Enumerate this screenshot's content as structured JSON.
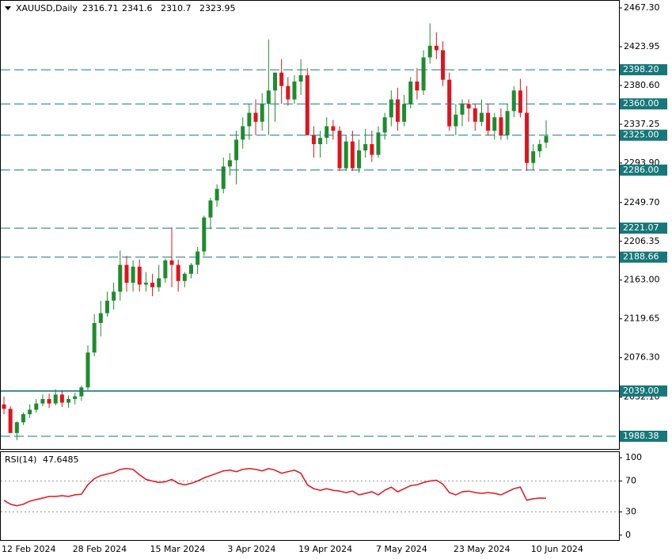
{
  "chart_data": [
    {
      "type": "candlestick",
      "symbol": "XAUUSD,Daily",
      "up_color": "#1e8c2d",
      "down_color": "#e0141e",
      "level_color": "#17777a",
      "categories": [
        "12 Feb 2024",
        null,
        null,
        null,
        null,
        null,
        null,
        null,
        null,
        null,
        null,
        "28 Feb 2024",
        null,
        null,
        null,
        null,
        null,
        null,
        null,
        null,
        null,
        null,
        null,
        "15 Mar 2024",
        null,
        null,
        null,
        null,
        null,
        null,
        null,
        null,
        null,
        null,
        null,
        "3 Apr 2024",
        null,
        null,
        null,
        null,
        null,
        null,
        null,
        null,
        null,
        null,
        "19 Apr 2024",
        null,
        null,
        null,
        null,
        null,
        null,
        null,
        null,
        null,
        null,
        null,
        "7 May 2024",
        null,
        null,
        null,
        null,
        null,
        null,
        null,
        null,
        null,
        null,
        null,
        "23 May 2024",
        null,
        null,
        null,
        null,
        null,
        null,
        null,
        null,
        null,
        null,
        null,
        "10 Jun 2024",
        null,
        null
      ],
      "open": [
        2024,
        2019,
        1992,
        2004,
        2013,
        2018,
        2025,
        2030,
        2025,
        2035,
        2026,
        2030,
        2033,
        2043,
        2082,
        2115,
        2126,
        2140,
        2150,
        2180,
        2160,
        2178,
        2158,
        2160,
        2155,
        2165,
        2185,
        2180,
        2162,
        2170,
        2180,
        2195,
        2233,
        2252,
        2265,
        2290,
        2297,
        2320,
        2335,
        2350,
        2340,
        2360,
        2375,
        2395,
        2380,
        2365,
        2385,
        2392,
        2325,
        2315,
        2322,
        2335,
        2330,
        2288,
        2318,
        2288,
        2308,
        2315,
        2303,
        2328,
        2345,
        2365,
        2340,
        2360,
        2385,
        2375,
        2412,
        2425,
        2420,
        2387,
        2335,
        2348,
        2360,
        2355,
        2340,
        2350,
        2330,
        2345,
        2325,
        2352,
        2375,
        2350,
        2294,
        2307,
        2316.71
      ],
      "high": [
        2033,
        2022,
        2005,
        2015,
        2024,
        2030,
        2035,
        2036,
        2041,
        2040,
        2034,
        2037,
        2045,
        2090,
        2125,
        2140,
        2150,
        2160,
        2196,
        2190,
        2185,
        2186,
        2172,
        2170,
        2180,
        2187,
        2222,
        2186,
        2172,
        2182,
        2200,
        2235,
        2255,
        2270,
        2300,
        2305,
        2330,
        2345,
        2360,
        2365,
        2372,
        2432,
        2390,
        2410,
        2390,
        2392,
        2410,
        2400,
        2335,
        2330,
        2345,
        2342,
        2335,
        2325,
        2330,
        2320,
        2332,
        2330,
        2335,
        2350,
        2375,
        2378,
        2370,
        2390,
        2400,
        2420,
        2450,
        2440,
        2430,
        2395,
        2360,
        2365,
        2365,
        2360,
        2365,
        2360,
        2350,
        2355,
        2360,
        2380,
        2388,
        2380,
        2315,
        2320,
        2341.6
      ],
      "low": [
        2013,
        1995,
        1984,
        2001,
        2009,
        2015,
        2022,
        2020,
        2023,
        2021,
        2020,
        2024,
        2028,
        2040,
        2078,
        2100,
        2122,
        2130,
        2140,
        2150,
        2150,
        2150,
        2150,
        2145,
        2150,
        2160,
        2155,
        2150,
        2155,
        2165,
        2170,
        2190,
        2220,
        2245,
        2260,
        2280,
        2270,
        2310,
        2320,
        2325,
        2330,
        2325,
        2340,
        2360,
        2358,
        2360,
        2370,
        2330,
        2300,
        2300,
        2315,
        2320,
        2285,
        2285,
        2285,
        2283,
        2300,
        2295,
        2300,
        2320,
        2335,
        2330,
        2335,
        2355,
        2365,
        2370,
        2405,
        2410,
        2380,
        2330,
        2325,
        2335,
        2340,
        2330,
        2335,
        2325,
        2320,
        2320,
        2320,
        2345,
        2345,
        2285,
        2286,
        2300,
        2310.7
      ],
      "close": [
        2019,
        1992,
        2004,
        2013,
        2018,
        2025,
        2030,
        2025,
        2035,
        2026,
        2030,
        2033,
        2043,
        2082,
        2115,
        2126,
        2140,
        2150,
        2180,
        2160,
        2178,
        2158,
        2160,
        2155,
        2165,
        2185,
        2180,
        2162,
        2170,
        2180,
        2195,
        2233,
        2252,
        2265,
        2290,
        2297,
        2320,
        2335,
        2350,
        2340,
        2360,
        2375,
        2395,
        2380,
        2365,
        2385,
        2392,
        2325,
        2315,
        2322,
        2335,
        2330,
        2288,
        2318,
        2288,
        2308,
        2315,
        2303,
        2328,
        2345,
        2365,
        2340,
        2360,
        2385,
        2375,
        2412,
        2425,
        2420,
        2387,
        2335,
        2348,
        2360,
        2355,
        2340,
        2350,
        2330,
        2345,
        2325,
        2352,
        2375,
        2350,
        2294,
        2307,
        2315,
        2323.95
      ],
      "ylim": [
        1973.3,
        2474.4
      ],
      "yticks": [
        {
          "value": 2467.3,
          "label": "2467.30"
        },
        {
          "value": 2423.95,
          "label": "2423.95"
        },
        {
          "value": 2380.6,
          "label": "2380.60"
        },
        {
          "value": 2337.25,
          "label": "2337.25"
        },
        {
          "value": 2293.9,
          "label": "2293.90"
        },
        {
          "value": 2249.7,
          "label": "2249.70"
        },
        {
          "value": 2206.35,
          "label": "2206.35"
        },
        {
          "value": 2163,
          "label": "2163.00"
        },
        {
          "value": 2119.65,
          "label": "2119.65"
        },
        {
          "value": 2076.3,
          "label": "2076.30"
        },
        {
          "value": 2032.1,
          "label": "2032.10"
        }
      ],
      "levels": [
        {
          "value": 2398.2,
          "label": "2398.20",
          "style": "dashed"
        },
        {
          "value": 2360,
          "label": "2360.00",
          "style": "dashed"
        },
        {
          "value": 2325,
          "label": "2325.00",
          "style": "dashed"
        },
        {
          "value": 2286,
          "label": "2286.00",
          "style": "dashed"
        },
        {
          "value": 2221.07,
          "label": "2221.07",
          "style": "dashed"
        },
        {
          "value": 2188.66,
          "label": "2188.66",
          "style": "dashed"
        },
        {
          "value": 2039,
          "label": "2039.00",
          "style": "solid"
        },
        {
          "value": 1988.38,
          "label": "1988.38",
          "style": "dashed"
        }
      ]
    },
    {
      "type": "line",
      "name": "RSI(14)",
      "color": "#e0141e",
      "values": [
        45,
        40,
        38,
        40,
        44,
        46,
        48,
        50,
        50,
        51,
        50,
        52,
        53,
        65,
        73,
        77,
        79,
        81,
        85,
        86,
        85,
        78,
        72,
        70,
        68,
        69,
        72,
        67,
        65,
        67,
        70,
        74,
        77,
        80,
        83,
        84,
        82,
        85,
        86,
        85,
        83,
        86,
        84,
        80,
        82,
        84,
        80,
        65,
        60,
        58,
        60,
        58,
        57,
        55,
        57,
        52,
        54,
        56,
        52,
        58,
        62,
        56,
        60,
        64,
        65,
        68,
        70,
        71,
        66,
        55,
        52,
        56,
        57,
        55,
        54,
        55,
        54,
        52,
        56,
        60,
        62,
        45,
        47,
        48,
        47.6485
      ],
      "ylim": [
        -7.3,
        107.3
      ],
      "yticks": [
        0,
        30,
        70,
        100
      ],
      "levels": [
        30,
        70
      ]
    }
  ]
}
